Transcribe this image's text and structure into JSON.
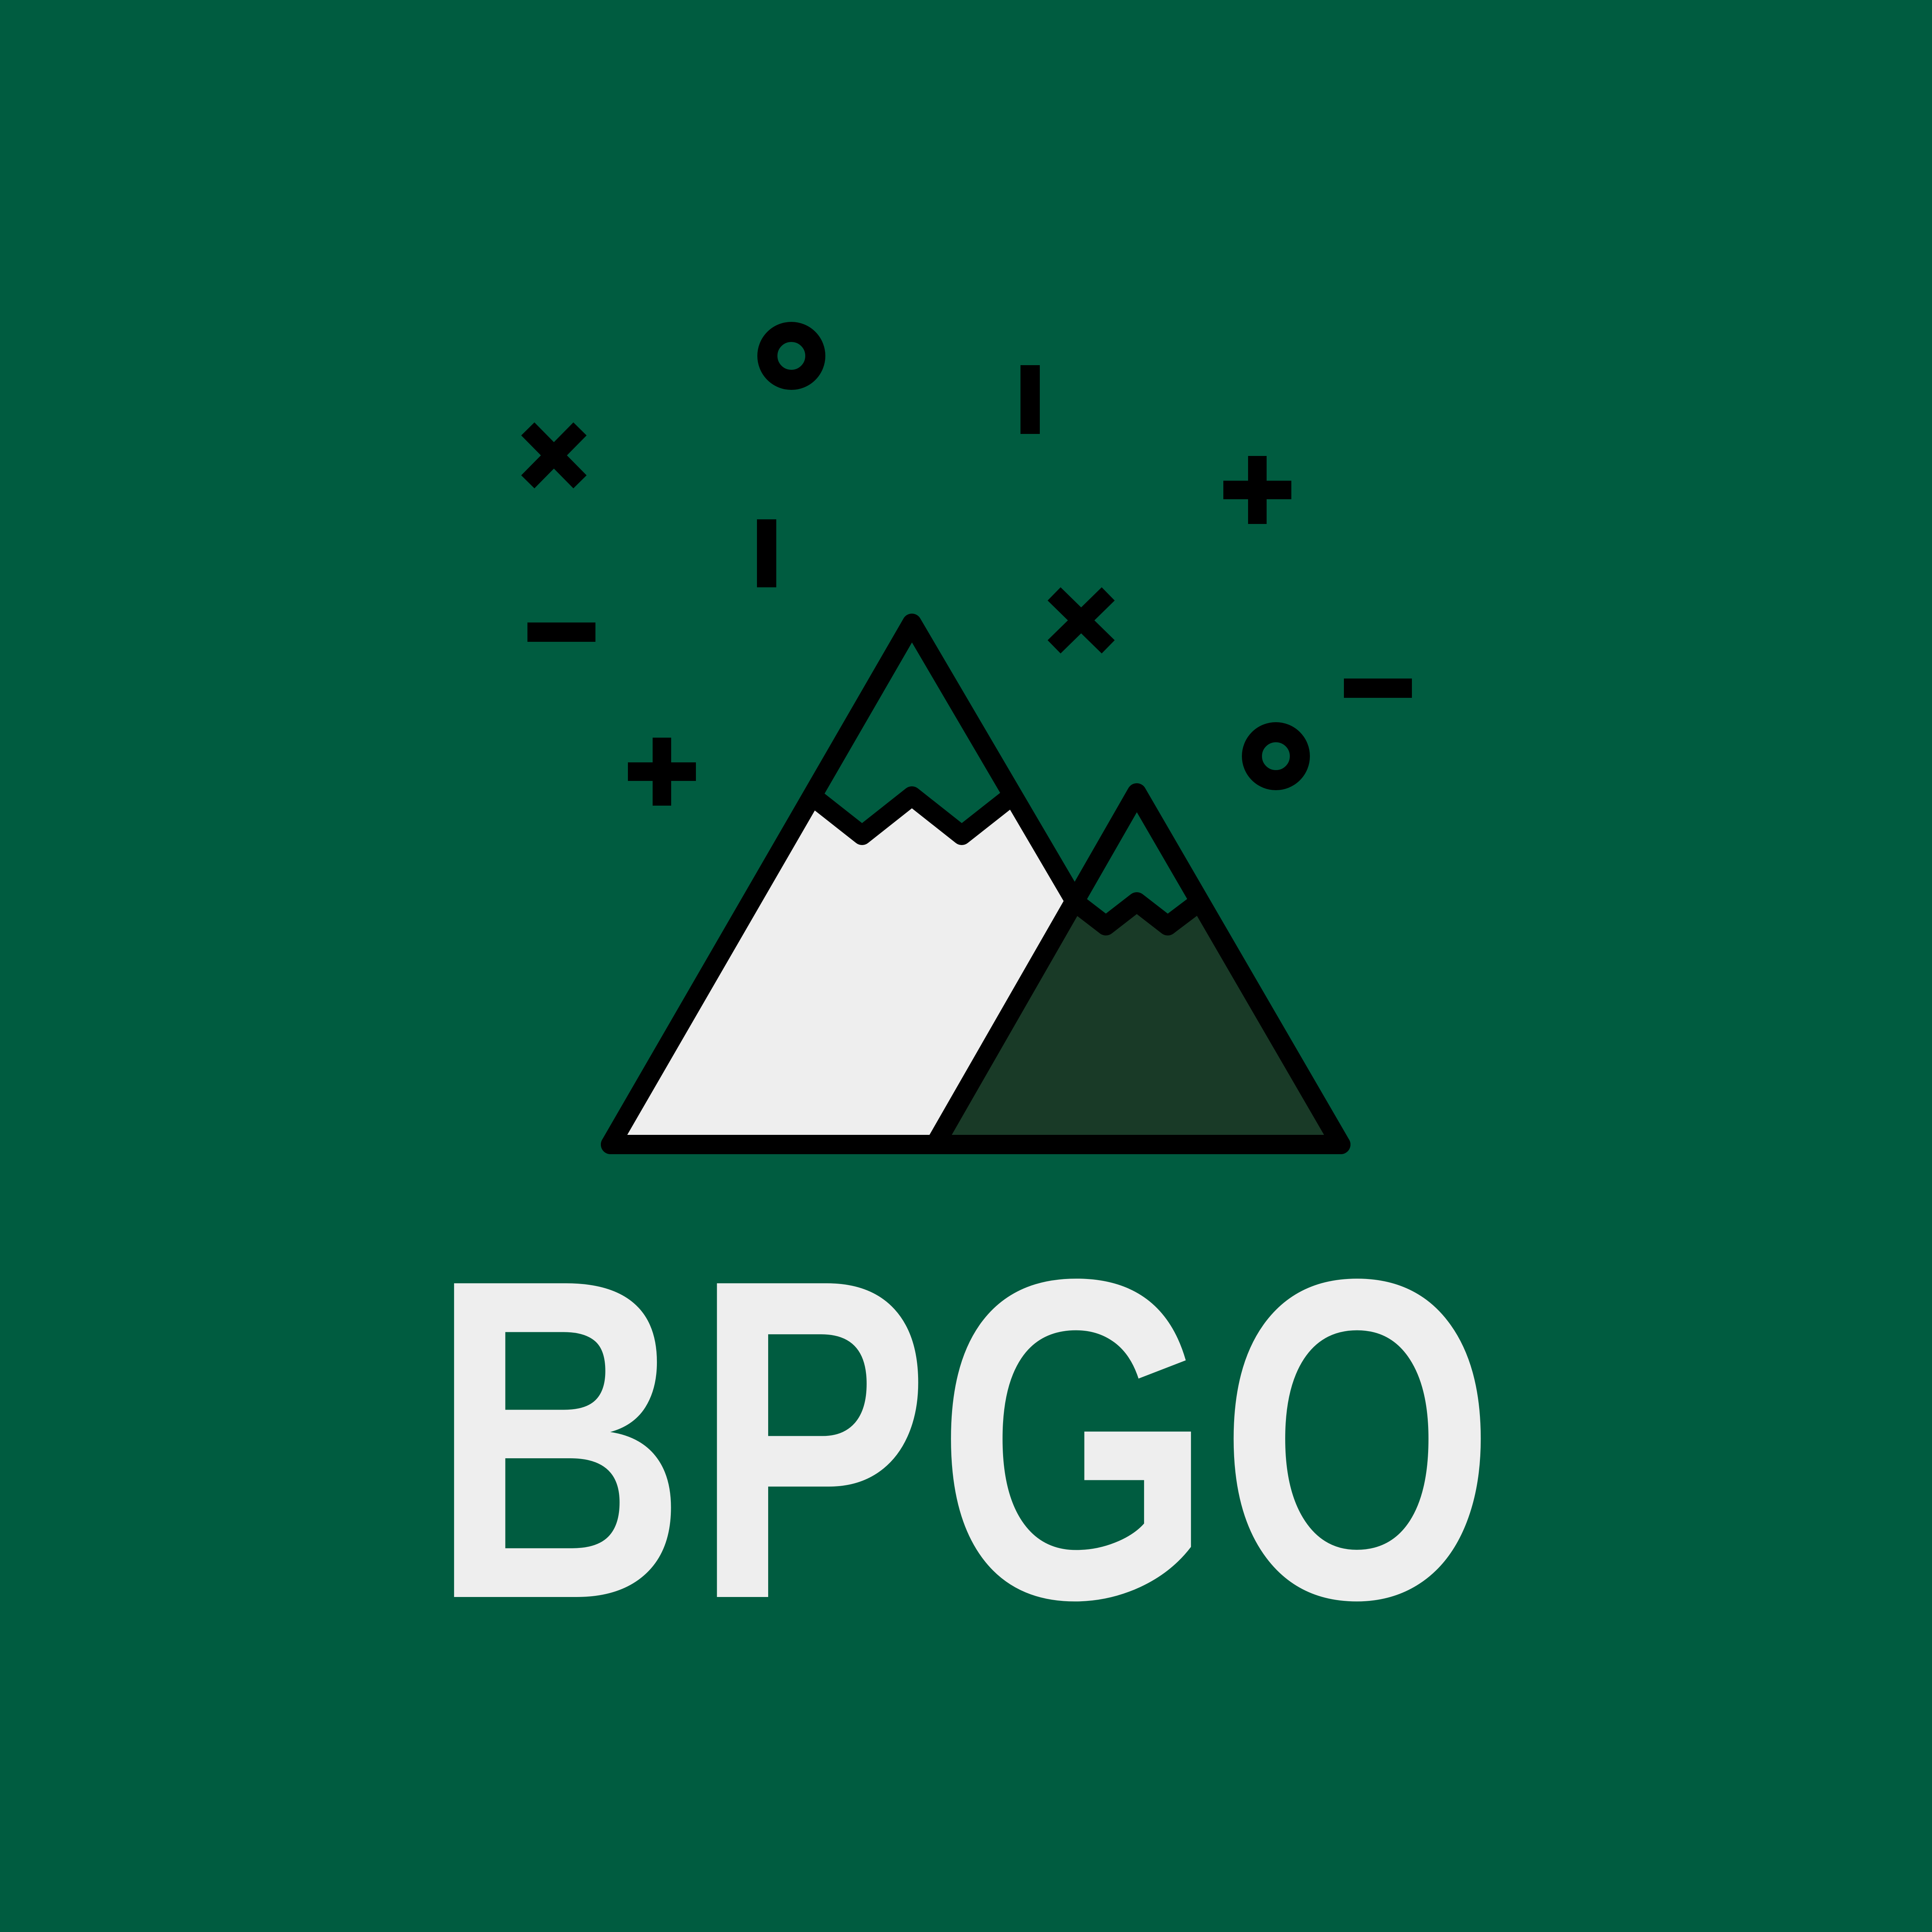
{
  "brand": {
    "wordmark": "BPGO"
  },
  "colors": {
    "background": "#005c40",
    "snow": "#eeeeee",
    "rear_mountain": "#193a27",
    "outline": "#000000",
    "text": "#eeeeee"
  },
  "icons": {
    "decorations": [
      "ring-icon",
      "ring-icon",
      "cross-icon",
      "cross-icon",
      "plus-icon",
      "plus-icon",
      "dash-icon",
      "dash-icon",
      "tick-icon",
      "tick-icon"
    ],
    "emblem": "mountains-icon"
  }
}
